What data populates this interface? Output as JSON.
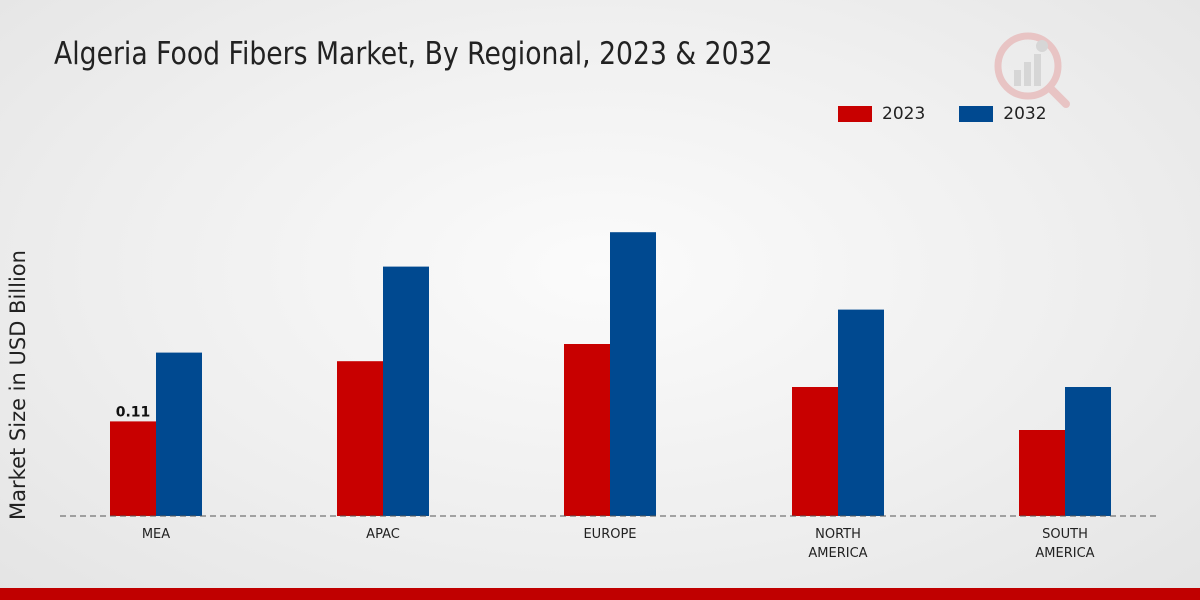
{
  "title": "Algeria Food Fibers Market, By Regional, 2023 & 2032",
  "colors": {
    "series_2023": "#c80000",
    "series_2032": "#004990",
    "brand_bar": "#c00000"
  },
  "logo_icon": "market-research-logo-icon",
  "chart_data": {
    "type": "bar",
    "title": "Algeria Food Fibers Market, By Regional, 2023 & 2032",
    "xlabel": "",
    "ylabel": "Market Size in USD Billion",
    "categories": [
      "MEA",
      "APAC",
      "EUROPE",
      "NORTH AMERICA",
      "SOUTH AMERICA"
    ],
    "series": [
      {
        "name": "2023",
        "values": [
          0.11,
          0.18,
          0.2,
          0.15,
          0.1
        ]
      },
      {
        "name": "2032",
        "values": [
          0.19,
          0.29,
          0.33,
          0.24,
          0.15
        ]
      }
    ],
    "data_labels": [
      {
        "series": "2023",
        "category": "MEA",
        "text": "0.11"
      }
    ],
    "ylim": [
      0,
      0.6
    ],
    "grid": false,
    "legend_position": "top-right"
  }
}
